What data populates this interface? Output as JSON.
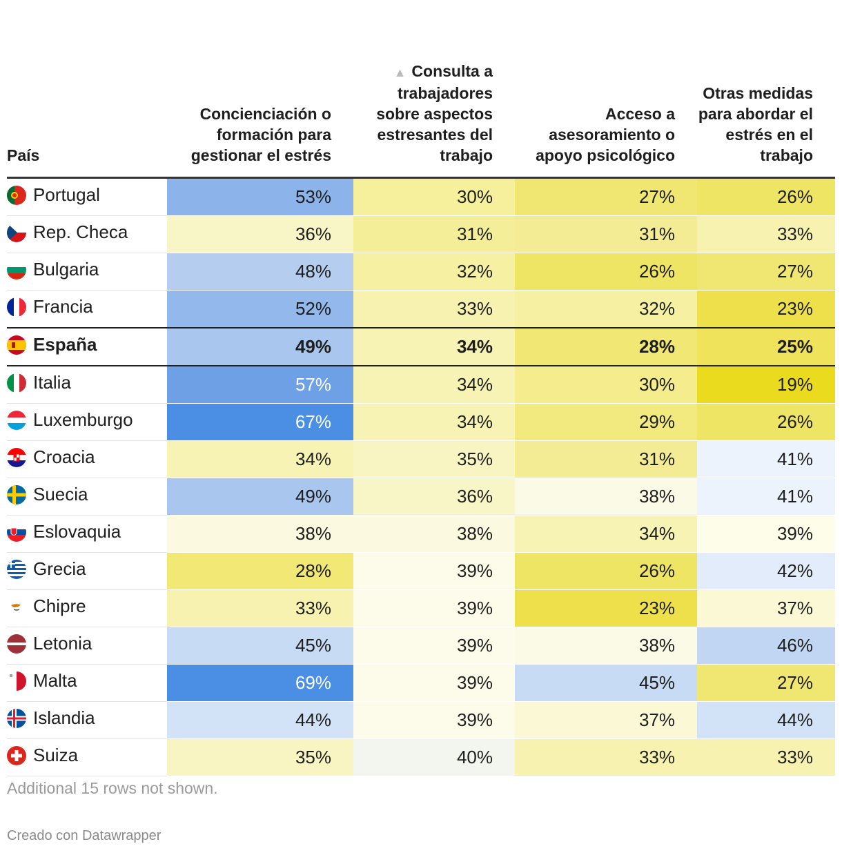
{
  "chart_data": {
    "type": "table",
    "columns": [
      "País",
      "Concienciación o formación para gestionar el estrés",
      "Consulta a trabajadores sobre aspectos estresantes del trabajo",
      "Acceso a asesoramiento o apoyo psicológico",
      "Otras medidas para abordar el estrés en el trabajo"
    ],
    "sort_indicator": "▲",
    "highlight_row": "España",
    "rows": [
      {
        "country": "Portugal",
        "values": [
          "53%",
          "30%",
          "27%",
          "26%"
        ],
        "colors": [
          "#8db4ea",
          "#f6ef9c",
          "#f0e772",
          "#efe565"
        ]
      },
      {
        "country": "Rep. Checa",
        "values": [
          "36%",
          "31%",
          "31%",
          "33%"
        ],
        "colors": [
          "#f8f5c6",
          "#f5ee98",
          "#f4ec95",
          "#f7f2b0"
        ]
      },
      {
        "country": "Bulgaria",
        "values": [
          "48%",
          "32%",
          "26%",
          "27%"
        ],
        "colors": [
          "#b5ceef",
          "#f6f0a3",
          "#efe565",
          "#f0e772"
        ]
      },
      {
        "country": "Francia",
        "values": [
          "52%",
          "33%",
          "32%",
          "23%"
        ],
        "colors": [
          "#93b8eb",
          "#f7f2b0",
          "#f6f0a3",
          "#ede04a"
        ]
      },
      {
        "country": "España",
        "values": [
          "49%",
          "34%",
          "28%",
          "25%"
        ],
        "colors": [
          "#a9c7ee",
          "#f7f3b5",
          "#f0e775",
          "#eee35a"
        ]
      },
      {
        "country": "Italia",
        "values": [
          "57%",
          "34%",
          "30%",
          "19%"
        ],
        "colors": [
          "#6ea0e6",
          "#f7f3b5",
          "#f4ec8d",
          "#ebdb1f"
        ]
      },
      {
        "country": "Luxemburgo",
        "values": [
          "67%",
          "34%",
          "29%",
          "26%"
        ],
        "colors": [
          "#4a8fe3",
          "#f7f3b5",
          "#f2e97f",
          "#efe565"
        ]
      },
      {
        "country": "Croacia",
        "values": [
          "34%",
          "35%",
          "31%",
          "41%"
        ],
        "colors": [
          "#f7f3b5",
          "#f8f5c2",
          "#f4ec95",
          "#edf3fc"
        ]
      },
      {
        "country": "Suecia",
        "values": [
          "49%",
          "36%",
          "38%",
          "41%"
        ],
        "colors": [
          "#a9c7ee",
          "#f8f5c6",
          "#fbfae6",
          "#edf3fc"
        ]
      },
      {
        "country": "Eslovaquia",
        "values": [
          "38%",
          "38%",
          "34%",
          "39%"
        ],
        "colors": [
          "#fbfae0",
          "#fbfae0",
          "#f7f3b5",
          "#fdfde9"
        ]
      },
      {
        "country": "Grecia",
        "values": [
          "28%",
          "39%",
          "26%",
          "42%"
        ],
        "colors": [
          "#f1e875",
          "#fdfcea",
          "#efe565",
          "#e3ecfa"
        ]
      },
      {
        "country": "Chipre",
        "values": [
          "33%",
          "39%",
          "23%",
          "37%"
        ],
        "colors": [
          "#f7f2b0",
          "#fdfcea",
          "#ede04a",
          "#fbf8d6"
        ]
      },
      {
        "country": "Letonia",
        "values": [
          "45%",
          "39%",
          "38%",
          "46%"
        ],
        "colors": [
          "#c8dbf4",
          "#fdfcea",
          "#fbfae6",
          "#c0d6f2"
        ]
      },
      {
        "country": "Malta",
        "values": [
          "69%",
          "39%",
          "45%",
          "27%"
        ],
        "colors": [
          "#4a8fe3",
          "#fdfcea",
          "#c8dbf4",
          "#f0e772"
        ]
      },
      {
        "country": "Islandia",
        "values": [
          "44%",
          "39%",
          "37%",
          "44%"
        ],
        "colors": [
          "#d3e3f7",
          "#fdfcea",
          "#fbf8d6",
          "#d3e3f7"
        ]
      },
      {
        "country": "Suiza",
        "values": [
          "35%",
          "40%",
          "33%",
          "33%"
        ],
        "colors": [
          "#f8f5c2",
          "#f3f5ef",
          "#f7f2b0",
          "#f7f2b0"
        ]
      }
    ],
    "note": "Additional 15 rows not shown.",
    "credit": "Creado con Datawrapper"
  }
}
